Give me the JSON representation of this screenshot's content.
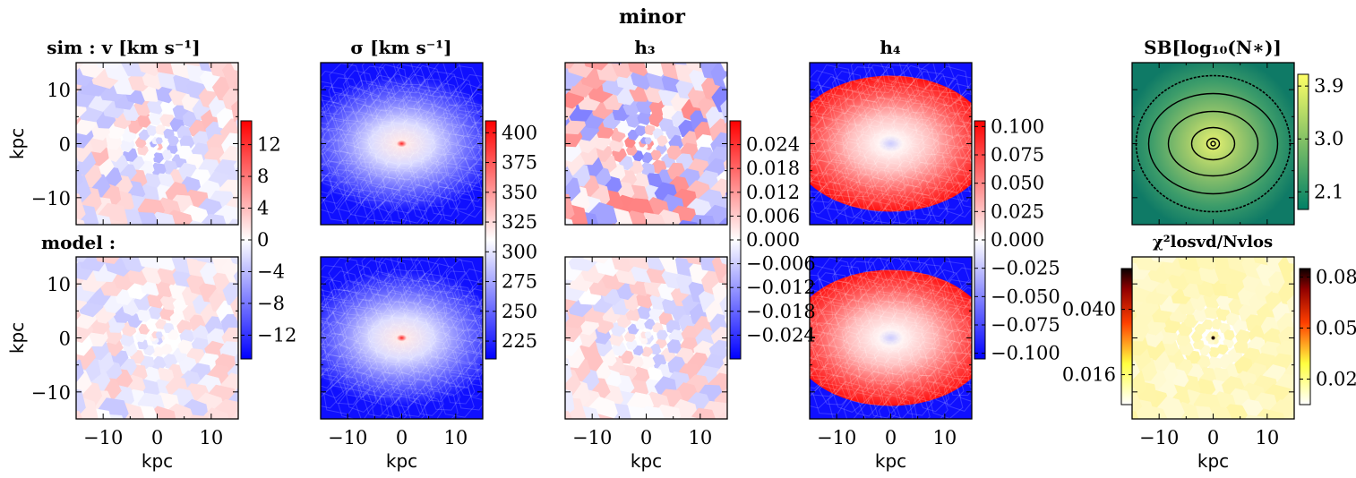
{
  "figure": {
    "suptitle": "minor"
  },
  "chart_data": [
    {
      "type": "heatmap",
      "id": "vel",
      "title": "sim : v [km s⁻¹]",
      "row_labels": [
        "sim",
        "model :"
      ],
      "xlabel": "kpc",
      "ylabel": "kpc",
      "xlim": [
        -15,
        15
      ],
      "ylim": [
        -15,
        15
      ],
      "xticks": [
        -10,
        0,
        10
      ],
      "yticks": [
        -10,
        0,
        10
      ],
      "colormap": "bwr",
      "clim": [
        -15,
        15
      ],
      "colorbar_ticks": [
        -12,
        -8,
        -4,
        0,
        4,
        8,
        12
      ],
      "colorbar_labels": [
        "−12",
        "−8",
        "−4",
        "0",
        "4",
        "8",
        "12"
      ]
    },
    {
      "type": "heatmap",
      "id": "sigma",
      "title": "σ [km s⁻¹]",
      "xlabel": "kpc",
      "xlim": [
        -15,
        15
      ],
      "ylim": [
        -15,
        15
      ],
      "xticks": [
        -10,
        0,
        10
      ],
      "colormap": "bwr",
      "clim": [
        210,
        410
      ],
      "colorbar_ticks": [
        225,
        250,
        275,
        300,
        325,
        350,
        375,
        400
      ],
      "colorbar_labels": [
        "225",
        "250",
        "275",
        "300",
        "325",
        "350",
        "375",
        "400"
      ]
    },
    {
      "type": "heatmap",
      "id": "h3",
      "title": "h₃",
      "xlabel": "kpc",
      "xlim": [
        -15,
        15
      ],
      "ylim": [
        -15,
        15
      ],
      "xticks": [
        -10,
        0,
        10
      ],
      "colormap": "bwr",
      "clim": [
        -0.03,
        0.03
      ],
      "colorbar_ticks": [
        -0.024,
        -0.018,
        -0.012,
        -0.006,
        0,
        0.006,
        0.012,
        0.018,
        0.024
      ],
      "colorbar_labels": [
        "−0.024",
        "−0.018",
        "−0.012",
        "−0.006",
        "0.000",
        "0.006",
        "0.012",
        "0.018",
        "0.024"
      ]
    },
    {
      "type": "heatmap",
      "id": "h4",
      "title": "h₄",
      "xlabel": "kpc",
      "xlim": [
        -15,
        15
      ],
      "ylim": [
        -15,
        15
      ],
      "xticks": [
        -10,
        0,
        10
      ],
      "colormap": "bwr",
      "clim": [
        -0.105,
        0.105
      ],
      "colorbar_ticks": [
        -0.1,
        -0.075,
        -0.05,
        -0.025,
        0,
        0.025,
        0.05,
        0.075,
        0.1
      ],
      "colorbar_labels": [
        "−0.100",
        "−0.075",
        "−0.050",
        "−0.025",
        "0.000",
        "0.025",
        "0.050",
        "0.075",
        "0.100"
      ]
    },
    {
      "type": "heatmap",
      "id": "sb",
      "title": "SB[log₁₀(N∗)]",
      "xlim": [
        -15,
        15
      ],
      "ylim": [
        -15,
        15
      ],
      "colormap": "summer",
      "clim": [
        1.8,
        4.1
      ],
      "colorbar_ticks": [
        2.1,
        3.0,
        3.9
      ],
      "colorbar_labels": [
        "2.1",
        "3.0",
        "3.9"
      ]
    },
    {
      "type": "heatmap",
      "id": "chi2",
      "title": "χ²losvd/Nvlos",
      "xlabel": "kpc",
      "xlim": [
        -15,
        15
      ],
      "ylim": [
        -15,
        15
      ],
      "xticks": [
        -10,
        0,
        10
      ],
      "colormap": "hot_r",
      "left_colorbar_ticks": [
        0.016,
        0.04
      ],
      "left_colorbar_labels": [
        "0.016",
        "0.040"
      ],
      "right_colorbar_ticks": [
        0.02,
        0.05,
        0.08
      ],
      "right_colorbar_labels": [
        "0.02",
        "0.05",
        "0.08"
      ]
    }
  ],
  "axis_common": {
    "tick_labels": [
      "−10",
      "0",
      "10"
    ],
    "unit": "kpc"
  }
}
